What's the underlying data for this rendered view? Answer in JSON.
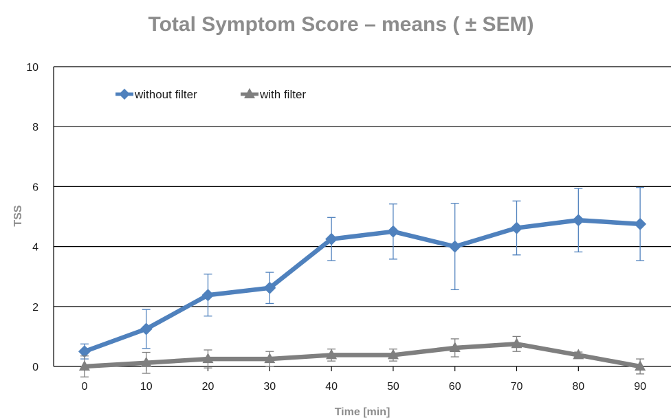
{
  "chart_data": {
    "type": "line",
    "title": "Total Symptom Score – means ( ± SEM)",
    "xlabel": "Time [min]",
    "ylabel": "TSS",
    "x": [
      0,
      10,
      20,
      30,
      40,
      50,
      60,
      70,
      80,
      90
    ],
    "xlim": [
      -5,
      95
    ],
    "ylim": [
      0,
      10
    ],
    "y_ticks": [
      0,
      2,
      4,
      6,
      8,
      10
    ],
    "grid": "horizontal",
    "legend_position": "top-left",
    "series": [
      {
        "name": "without filter",
        "color": "#4f81bd",
        "marker": "diamond",
        "values": [
          0.5,
          1.25,
          2.38,
          2.62,
          4.25,
          4.5,
          4.0,
          4.62,
          4.88,
          4.75
        ],
        "sem": [
          0.25,
          0.65,
          0.7,
          0.52,
          0.72,
          0.92,
          1.44,
          0.9,
          1.06,
          1.22
        ]
      },
      {
        "name": "with filter",
        "color": "#7f7f7f",
        "marker": "triangle",
        "values": [
          0.0,
          0.12,
          0.25,
          0.25,
          0.38,
          0.38,
          0.62,
          0.75,
          0.38,
          0.0
        ],
        "sem": [
          0.35,
          0.35,
          0.3,
          0.25,
          0.2,
          0.2,
          0.3,
          0.25,
          0.1,
          0.25
        ]
      }
    ]
  }
}
